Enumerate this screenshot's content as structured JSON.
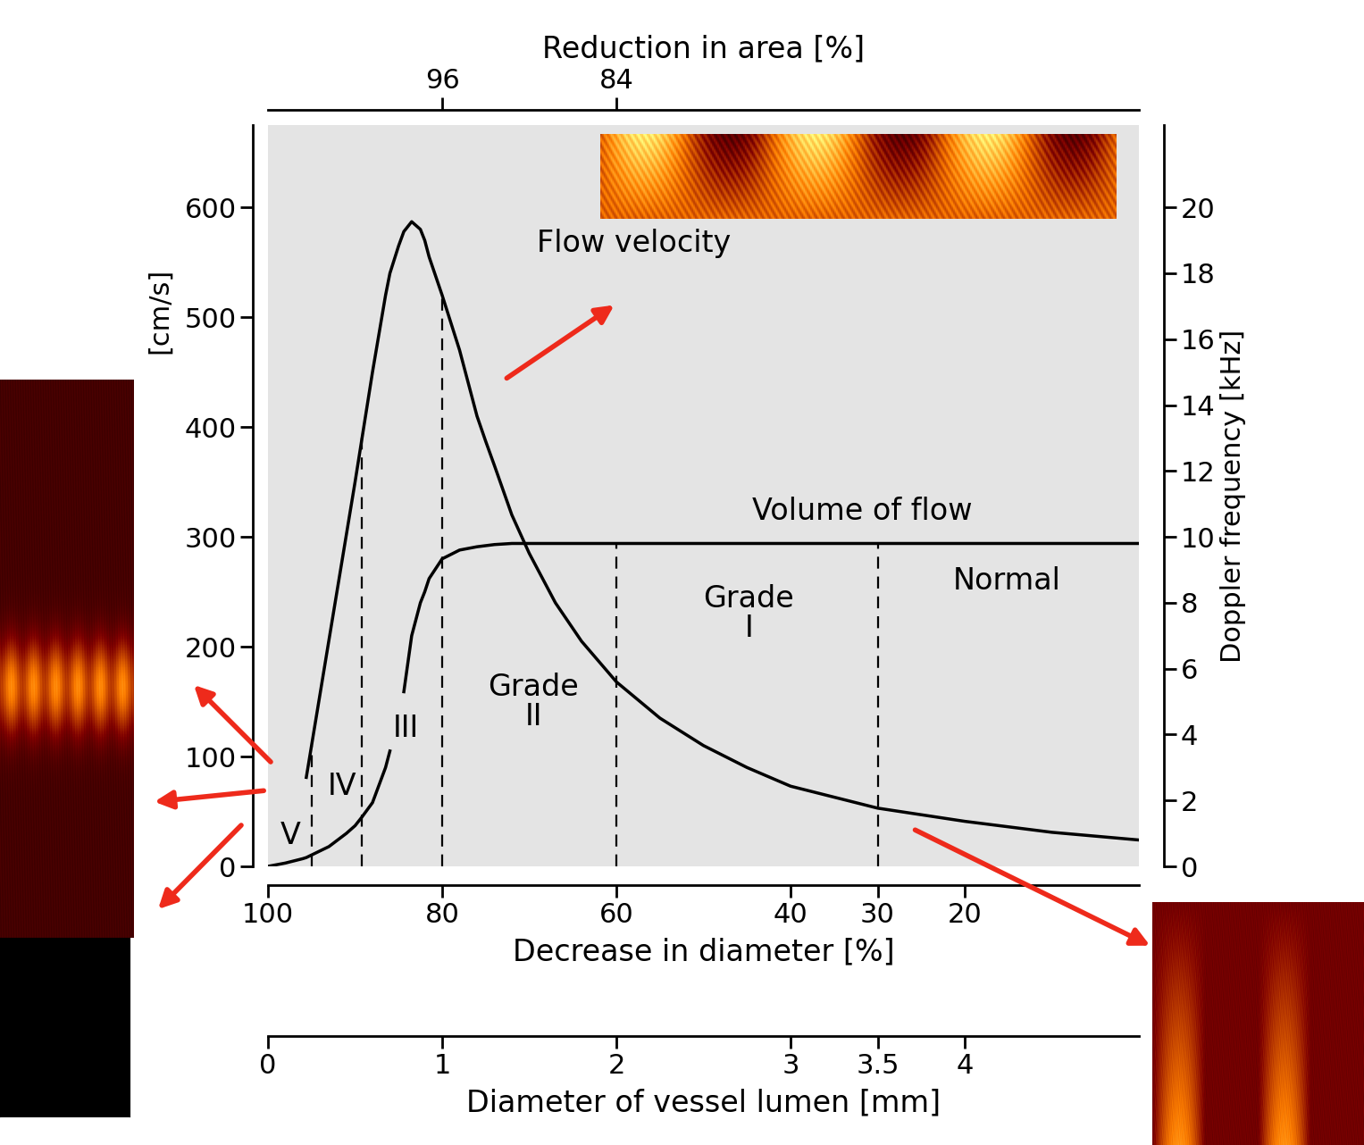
{
  "chart_data": {
    "type": "line",
    "x_label": "Decrease in diameter [%]",
    "y_label": "[cm/s]",
    "y2_label": "Doppler frequency [kHz]",
    "xlim": [
      100,
      0
    ],
    "xticks": [
      100,
      80,
      60,
      40,
      30,
      20
    ],
    "ylim": [
      0,
      675
    ],
    "yticks": [
      0,
      100,
      200,
      300,
      400,
      500,
      600
    ],
    "y2lim": [
      0,
      22.5
    ],
    "y2ticks": [
      0,
      2,
      4,
      6,
      8,
      10,
      12,
      14,
      16,
      18,
      20
    ],
    "x": [
      100,
      98,
      96,
      95.6,
      93,
      91,
      90,
      89.2,
      88,
      86.5,
      86,
      85,
      84.4,
      83.5,
      82.5,
      82,
      81.5,
      80,
      78,
      76,
      75,
      74,
      72,
      70,
      67,
      64,
      60,
      55,
      50,
      45,
      40,
      30,
      20,
      10,
      0
    ],
    "series": [
      {
        "name": "Flow velocity",
        "color": "#000000",
        "line_style": "solid",
        "values": [
          null,
          null,
          null,
          81,
          206,
          302,
          350,
          390,
          450,
          520,
          540,
          565,
          578,
          587,
          580,
          570,
          555,
          520,
          470,
          410,
          387,
          365,
          320,
          285,
          240,
          205,
          168,
          135,
          110,
          90,
          73,
          53,
          41,
          31,
          24
        ]
      },
      {
        "name": "Volume of flow",
        "color": "#000000",
        "line_style": "solid",
        "values": [
          0,
          3,
          7,
          8,
          18,
          30,
          37,
          45,
          58,
          90,
          105,
          null,
          159,
          210,
          240,
          250,
          262,
          280,
          288,
          291,
          292,
          293,
          294,
          294,
          294,
          294,
          294,
          294,
          294,
          294,
          294,
          294,
          294,
          294,
          294
        ]
      }
    ],
    "grade_boundaries": [
      95,
      89.2,
      80,
      60,
      30
    ],
    "grades": [
      "V",
      "IV",
      "III",
      "Grade\nII",
      "Grade\nI",
      "Normal"
    ],
    "top_axis": {
      "label": "Reduction in area [%]",
      "ticks": [
        96,
        84
      ]
    },
    "lumen_axis": {
      "label": "Diameter of vessel lumen [mm]",
      "xlim": [
        0,
        5
      ],
      "ticks": [
        0,
        1,
        2,
        3,
        3.5,
        4
      ]
    }
  }
}
